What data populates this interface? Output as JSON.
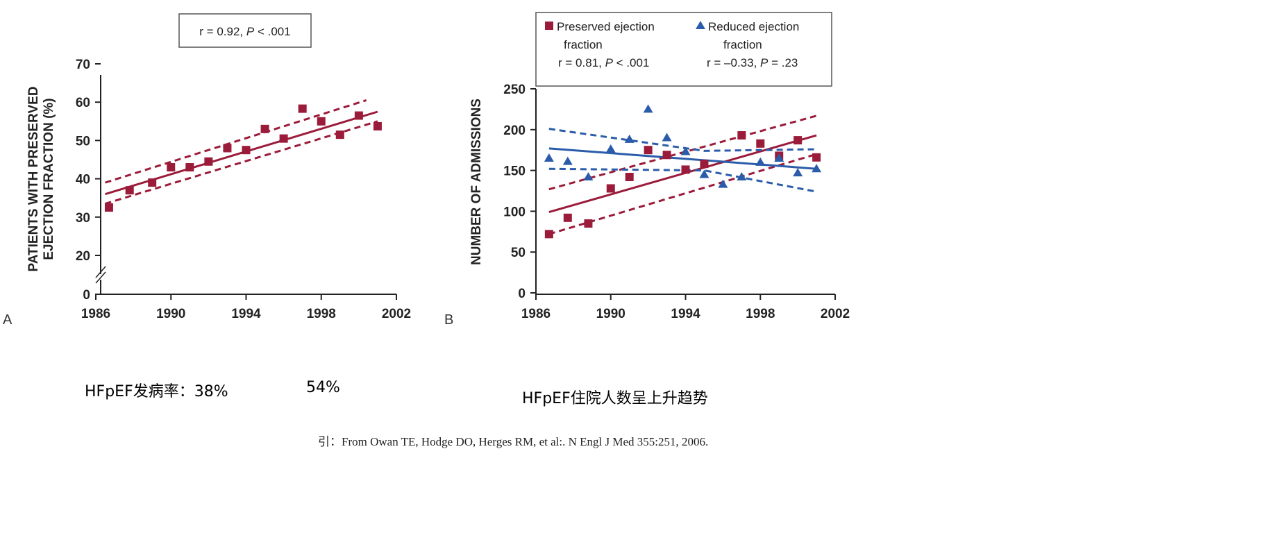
{
  "chart_data": [
    {
      "type": "scatter",
      "panel_label": "A",
      "annotation": {
        "prefix": "r = 0.92, ",
        "p": "P",
        "suffix": " < .001"
      },
      "ylabel_lines": [
        "PATIENTS WITH PRESERVED",
        "EJECTION FRACTION (%)"
      ],
      "xlabel": "",
      "xticks": [
        "1986",
        "1990",
        "1994",
        "1998",
        "2002"
      ],
      "yticks": [
        "70",
        "60",
        "50",
        "40",
        "30",
        "20",
        "0"
      ],
      "xlim": [
        1986,
        2002
      ],
      "ylim": [
        0,
        70
      ],
      "axis_break": true,
      "series": [
        {
          "name": "Preserved ejection fraction",
          "marker": "square",
          "color": "#9b1b3a",
          "x": [
            1986.7,
            1987.8,
            1989,
            1990,
            1991,
            1992,
            1993,
            1994,
            1995,
            1996,
            1997,
            1998,
            1999,
            2000,
            2001
          ],
          "y": [
            32.5,
            37,
            39,
            43,
            43,
            44.5,
            48,
            47.5,
            53,
            50.5,
            58.3,
            55,
            51.5,
            56.5,
            53.7
          ],
          "fit": {
            "x": [
              1986.5,
              2001
            ],
            "y": [
              36,
              57.5
            ]
          },
          "ci_upper": {
            "x": [
              1986.5,
              2000.4
            ],
            "y": [
              39,
              60.5
            ]
          },
          "ci_lower": {
            "x": [
              1986.5,
              2001
            ],
            "y": [
              33.5,
              55
            ]
          }
        }
      ]
    },
    {
      "type": "scatter",
      "panel_label": "B",
      "ylabel": "NUMBER OF ADMISSIONS",
      "xlabel": "",
      "xticks": [
        "1986",
        "1990",
        "1994",
        "1998",
        "2002"
      ],
      "yticks": [
        "250",
        "200",
        "150",
        "100",
        "50",
        "0"
      ],
      "xlim": [
        1986,
        2002
      ],
      "ylim": [
        0,
        250
      ],
      "legend_position": "top",
      "legend": [
        {
          "line1": "Preserved ejection",
          "line2": "fraction",
          "stat_prefix": "r = 0.81, ",
          "stat_p": "P",
          "stat_suffix": " < .001"
        },
        {
          "line1": "Reduced ejection",
          "line2": "fraction",
          "stat_prefix": "r = –0.33, ",
          "stat_p": "P",
          "stat_suffix": " = .23"
        }
      ],
      "series": [
        {
          "name": "Preserved ejection fraction",
          "marker": "square",
          "color": "#9b1b3a",
          "x": [
            1986.7,
            1987.7,
            1988.8,
            1990,
            1991,
            1992,
            1993,
            1994,
            1995,
            1997,
            1998,
            1999,
            2000,
            2001
          ],
          "y": [
            72,
            92,
            85,
            128,
            142,
            175,
            169,
            151,
            158,
            193,
            183,
            168,
            187,
            166
          ],
          "fit": {
            "x": [
              1986.7,
              2001
            ],
            "y": [
              99,
              193
            ]
          },
          "ci_upper": {
            "x": [
              1986.7,
              2001
            ],
            "y": [
              127,
              217
            ]
          },
          "ci_lower": {
            "x": [
              1986.7,
              2001
            ],
            "y": [
              72,
              170
            ]
          }
        },
        {
          "name": "Reduced ejection fraction",
          "marker": "triangle",
          "color": "#2a5caa",
          "x": [
            1986.7,
            1987.7,
            1988.8,
            1990,
            1991,
            1992,
            1993,
            1994,
            1995,
            1996,
            1997,
            1998,
            1999,
            2000,
            2001
          ],
          "y": [
            165,
            161,
            142,
            176,
            188,
            225,
            190,
            173,
            145,
            133,
            142,
            160,
            165,
            147,
            152
          ],
          "fit": {
            "x": [
              1986.7,
              2001
            ],
            "y": [
              177,
              152
            ]
          },
          "ci_upper": {
            "x": [
              1986.7,
              1995,
              2001
            ],
            "y": [
              201,
              174,
              176
            ]
          },
          "ci_lower": {
            "x": [
              1986.7,
              1995,
              2001
            ],
            "y": [
              152,
              150,
              124
            ]
          }
        }
      ]
    }
  ],
  "captions": {
    "left_label": "HFpEF发病率：38%",
    "left_value2": "54%",
    "right": "HFpEF住院人数呈上升趋势"
  },
  "reference": "引：From Owan TE, Hodge DO, Herges RM, et al:. N Engl J Med 355:251, 2006."
}
